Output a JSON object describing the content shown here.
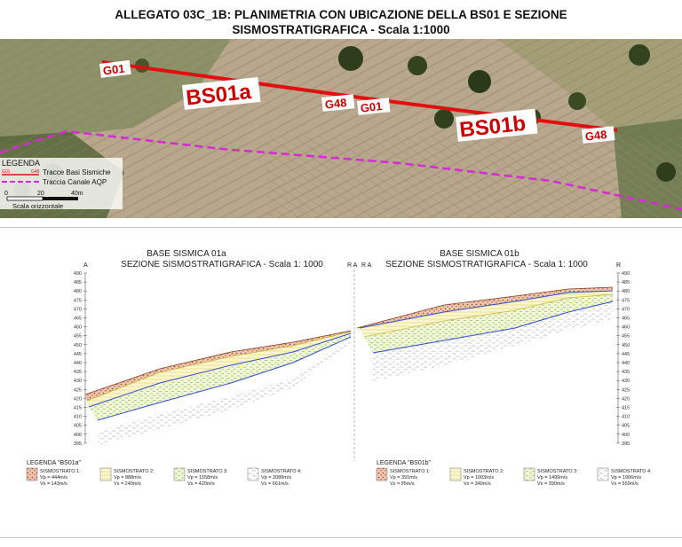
{
  "title_line1": "ALLEGATO 03C_1B: PLANIMETRIA CON UBICAZIONE DELLA BS01 E SEZIONE",
  "title_line2": "SISMOSTRATIGRAFICA  - Scala 1:1000",
  "map": {
    "labels": {
      "g01_a": "G01",
      "bs01a": "BS01a",
      "g48_a": "G48",
      "g01_b": "G01",
      "bs01b": "BS01b",
      "g48_b": "G48"
    },
    "legend": {
      "title": "LEGENDA",
      "line_start": "G01",
      "line_end": "G48",
      "item1": "Tracce Basi Sismiche",
      "item2": "Traccia Canale AQP",
      "scale_0": "0",
      "scale_20": "20",
      "scale_40": "40m",
      "scale_label": "Scala orizzontale"
    },
    "colors": {
      "seismic_line": "#e01010",
      "canal_line": "#d62ad6"
    }
  },
  "section_a": {
    "title1": "BASE SISMICA 01a",
    "title2": "SEZIONE SISMOSTRATIGRAFICA - Scala 1: 1000",
    "left_end": "A",
    "right_end": "R A",
    "legend_title": "LEGENDA \"BS01a\"",
    "legend": [
      {
        "name": "SISMOSTRATO 1:",
        "vp": "Vp = 444m/s",
        "vs": "Vs = 143m/s"
      },
      {
        "name": "SISMOSTRATO 2:",
        "vp": "Vp = 888m/s",
        "vs": "Vs = 240m/s"
      },
      {
        "name": "SISMOSTRATO 3:",
        "vp": "Vp = 1558m/s",
        "vs": "Vs = 420m/s"
      },
      {
        "name": "SISMOSTRATO 4:",
        "vp": "Vp = 2089m/s",
        "vs": "Vs = 661m/s"
      }
    ]
  },
  "section_b": {
    "title1": "BASE SISMICA 01b",
    "title2": "SEZIONE SISMOSTRATIGRAFICA - Scala 1: 1000",
    "left_end": "R A",
    "right_end": "R",
    "legend_title": "LEGENDA \"BS01b\"",
    "legend": [
      {
        "name": "SISMOSTRATO 1:",
        "vp": "Vp = 391m/s",
        "vs": "Vs = 95m/s"
      },
      {
        "name": "SISMOSTRATO 2:",
        "vp": "Vp = 1003m/s",
        "vs": "Vs = 340m/s"
      },
      {
        "name": "SISMOSTRATO 3:",
        "vp": "Vp = 1499m/s",
        "vs": "Vs = 390m/s"
      },
      {
        "name": "SISMOSTRATO 4:",
        "vp": "Vp = 1906m/s",
        "vs": "Vs = 559m/s"
      }
    ]
  },
  "elevation_ticks": [
    "490",
    "485",
    "480",
    "475",
    "470",
    "465",
    "460",
    "455",
    "450",
    "445",
    "440",
    "435",
    "430",
    "425",
    "420",
    "415",
    "410",
    "405",
    "400",
    "395"
  ],
  "layer_colors": {
    "s1": "#e9c9b6",
    "s1_dot": "#a0522d",
    "s2": "#fbf6cf",
    "s2_line": "#d8d060",
    "s3": "#eef5cf",
    "s3_line": "#9cc25a",
    "s4_line": "#bbbbbb",
    "boundary": "#3050c8"
  }
}
